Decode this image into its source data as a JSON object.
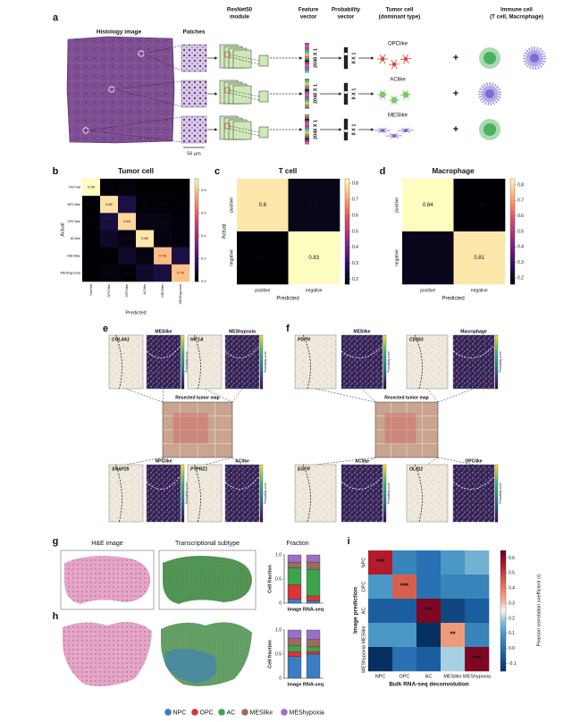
{
  "panel_a": {
    "label": "a",
    "histology": "Histology image",
    "patches": "Patches",
    "resnet": [
      "ResNet50",
      "module"
    ],
    "feature": [
      "Feature",
      "vector"
    ],
    "probability": [
      "Probability",
      "vector"
    ],
    "tumor": [
      "Tumor cell",
      "(dominant type)"
    ],
    "immune": [
      "Immune cell",
      "(T cell, Macrophage)"
    ],
    "scale": "56 µm",
    "feature_dim": "2048 X 1",
    "prob_dim": "8 X 1",
    "tumor_types": [
      "OPClike",
      "AClike",
      "MESlike"
    ],
    "plus": "+"
  },
  "panel_b": {
    "label": "b",
    "title": "Tumor cell",
    "labels": [
      "Normal",
      "NPClike",
      "OPClike",
      "AClike",
      "MESlike",
      "MEShypoxia"
    ],
    "matrix": [
      [
        0.98,
        0.005,
        0.015,
        0,
        0,
        0
      ],
      [
        0.002,
        0.85,
        0.12,
        0.01,
        0.0081,
        0.001
      ],
      [
        0.004,
        0.11,
        0.83,
        0.03,
        0.026,
        0.01
      ],
      [
        0,
        0.063,
        0.026,
        0.86,
        0.023,
        0.0077
      ],
      [
        0,
        0.0021,
        0.074,
        0.022,
        0.78,
        0.12
      ],
      [
        0,
        0.016,
        0.004,
        0.073,
        0.11,
        0.79
      ]
    ],
    "xlabel": "Predicted",
    "ylabel": "Actual",
    "clim": [
      0,
      0.9
    ],
    "cticks": [
      {
        "value": 0,
        "label": "0.0"
      },
      0.2,
      0.4,
      0.6,
      0.8
    ]
  },
  "panel_c": {
    "label": "c",
    "title": "T cell",
    "labels": [
      "positive",
      "negative"
    ],
    "matrix": [
      [
        0.8,
        0.2
      ],
      [
        0.17,
        0.83
      ]
    ],
    "xlabel": "Predicted",
    "ylabel": "Actual",
    "clim": [
      0.17,
      0.83
    ],
    "cticks": [
      0.2,
      0.3,
      0.4,
      0.5,
      0.6,
      0.7,
      0.8
    ]
  },
  "panel_d": {
    "label": "d",
    "title": "Macrophage",
    "labels": [
      "positive",
      "negative"
    ],
    "matrix": [
      [
        0.84,
        0.16
      ],
      [
        0.19,
        0.81
      ]
    ],
    "xlabel": "Predicted",
    "clim": [
      0.16,
      0.84
    ],
    "cticks": [
      0.2,
      0.3,
      0.4,
      0.5,
      0.6,
      0.7,
      0.8
    ]
  },
  "panel_e": {
    "label": "e",
    "tiles": [
      "COL4A1",
      "MESlike",
      "HIF1A",
      "MEShypoxia",
      "SNAP25",
      "NPClike",
      "PTPRZ1",
      "AClike"
    ],
    "map_title": "Resected tumor map",
    "prob_label": "Probability score"
  },
  "panel_f": {
    "label": "f",
    "tiles": [
      "PDPN",
      "MESlike",
      "CD163",
      "Macrophage",
      "EGFR",
      "AClike",
      "OLIG2",
      "OPClike"
    ],
    "map_title": "Resected tumor map",
    "prob_label": "Probability score"
  },
  "panel_g": {
    "label": "g",
    "headers": [
      "H&E image",
      "Transcriptional subtype",
      "Fraction"
    ],
    "ylabel": "Cell fraction",
    "categories": [
      "Image",
      "RNA-seq"
    ],
    "ylim": [
      0,
      1
    ],
    "yticks": [
      0,
      0.5,
      {
        "value": 1,
        "label": "1.0"
      }
    ],
    "series": [
      {
        "name": "NPC",
        "color": "#3a7dc4",
        "values": [
          0.08,
          0.05
        ]
      },
      {
        "name": "OPC",
        "color": "#d8343a",
        "values": [
          0.3,
          0.1
        ]
      },
      {
        "name": "AC",
        "color": "#3fa34d",
        "values": [
          0.35,
          0.55
        ]
      },
      {
        "name": "MESlike",
        "color": "#9a6b5f",
        "values": [
          0.12,
          0.15
        ]
      },
      {
        "name": "MEShypoxia",
        "color": "#9a6fc6",
        "values": [
          0.15,
          0.15
        ]
      }
    ]
  },
  "panel_h": {
    "label": "h",
    "ylabel": "Cell fraction",
    "categories": [
      "Image",
      "RNA-seq"
    ],
    "ylim": [
      0,
      1
    ],
    "yticks": [
      0,
      0.5,
      {
        "value": 1,
        "label": "1.0"
      }
    ],
    "series": [
      {
        "color": "#3a7dc4",
        "values": [
          0.45,
          0.5
        ]
      },
      {
        "color": "#d8343a",
        "values": [
          0.1,
          0.05
        ]
      },
      {
        "color": "#3fa34d",
        "values": [
          0.12,
          0.1
        ]
      },
      {
        "color": "#9a6b5f",
        "values": [
          0.15,
          0.15
        ]
      },
      {
        "color": "#9a6fc6",
        "values": [
          0.18,
          0.2
        ]
      }
    ]
  },
  "panel_i": {
    "label": "i",
    "labels": [
      "NPC",
      "OPC",
      "AC",
      "MESlike",
      "MEShypoxia"
    ],
    "matrix": [
      [
        0.55,
        0.05,
        0.0,
        0.1,
        0.15
      ],
      [
        0.1,
        0.45,
        0.0,
        0.05,
        0.05
      ],
      [
        -0.05,
        -0.05,
        0.62,
        -0.1,
        -0.05
      ],
      [
        0.1,
        0.1,
        -0.15,
        0.35,
        0.05
      ],
      [
        -0.15,
        0.0,
        -0.05,
        0.2,
        0.62
      ]
    ],
    "stars": [
      [
        "***",
        null,
        null,
        null,
        null
      ],
      [
        null,
        "***",
        null,
        null,
        null
      ],
      [
        null,
        null,
        "***",
        null,
        null
      ],
      [
        null,
        null,
        null,
        "**",
        null
      ],
      [
        null,
        null,
        null,
        null,
        "***"
      ]
    ],
    "xlabel": "Bulk RNA-seq deconvolution",
    "ylabel": "Image prediction",
    "clabel": "Pearson correlation coefficient (r)",
    "clim": [
      -0.15,
      0.65
    ],
    "cticks": [
      -0.1,
      {
        "value": 0,
        "label": "0.0"
      },
      0.1,
      0.2,
      0.3,
      0.4,
      0.5,
      0.6
    ]
  }
}
